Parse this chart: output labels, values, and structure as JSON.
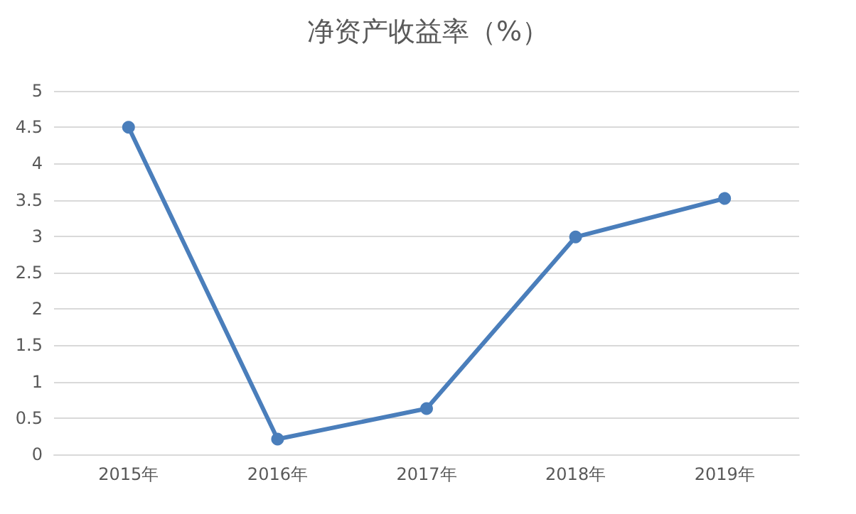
{
  "chart_data": {
    "type": "line",
    "title": "净资产收益率（%）",
    "categories": [
      "2015年",
      "2016年",
      "2017年",
      "2018年",
      "2019年"
    ],
    "series": [
      {
        "color": "#4a7ebb",
        "values": [
          4.5,
          0.21,
          0.63,
          2.99,
          3.52
        ]
      }
    ],
    "ylim": [
      0,
      5
    ],
    "yticks": [
      0,
      0.5,
      1,
      1.5,
      2,
      2.5,
      3,
      3.5,
      4,
      4.5,
      5
    ],
    "grid": "y",
    "marker": "circle",
    "line_style": "solid"
  }
}
